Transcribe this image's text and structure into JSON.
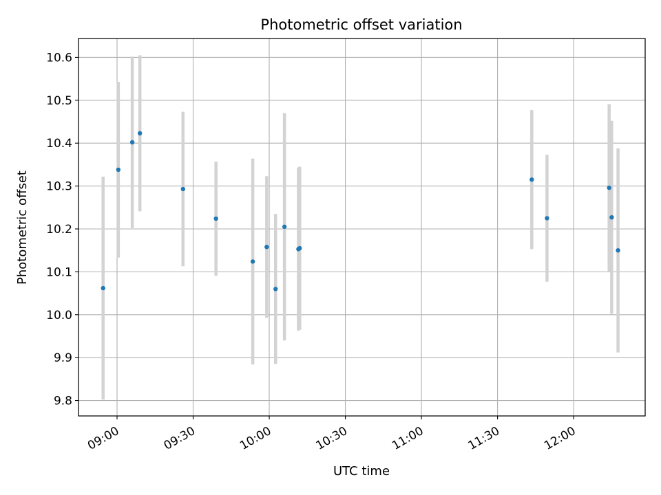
{
  "chart_data": {
    "type": "scatter",
    "title": "Photometric offset variation",
    "xlabel": "UTC time",
    "ylabel": "Photometric offset",
    "x_tick_labels": [
      "09:00",
      "09:30",
      "10:00",
      "10:30",
      "11:00",
      "11:30",
      "12:00"
    ],
    "y_tick_labels": [
      "9.8",
      "9.9",
      "10.0",
      "10.1",
      "10.2",
      "10.3",
      "10.4",
      "10.5",
      "10.6"
    ],
    "xlim": [
      "08:44:48",
      "12:28:12"
    ],
    "ylim": [
      9.764,
      10.644
    ],
    "grid": true,
    "point_color": "#1f77b4",
    "errorbar_color": "#d3d3d3",
    "points": [
      {
        "x": "08:54:30",
        "y": 10.062,
        "yerr": 0.26
      },
      {
        "x": "09:00:30",
        "y": 10.338,
        "yerr": 0.205
      },
      {
        "x": "09:06:00",
        "y": 10.402,
        "yerr": 0.2
      },
      {
        "x": "09:09:00",
        "y": 10.423,
        "yerr": 0.182
      },
      {
        "x": "09:26:00",
        "y": 10.293,
        "yerr": 0.18
      },
      {
        "x": "09:39:00",
        "y": 10.224,
        "yerr": 0.133
      },
      {
        "x": "09:53:30",
        "y": 10.124,
        "yerr": 0.24
      },
      {
        "x": "09:59:00",
        "y": 10.158,
        "yerr": 0.165
      },
      {
        "x": "10:02:30",
        "y": 10.06,
        "yerr": 0.175
      },
      {
        "x": "10:06:00",
        "y": 10.205,
        "yerr": 0.265
      },
      {
        "x": "10:11:30",
        "y": 10.153,
        "yerr": 0.19
      },
      {
        "x": "10:12:00",
        "y": 10.155,
        "yerr": 0.19
      },
      {
        "x": "11:43:30",
        "y": 10.315,
        "yerr": 0.162
      },
      {
        "x": "11:49:30",
        "y": 10.225,
        "yerr": 0.148
      },
      {
        "x": "12:14:00",
        "y": 10.296,
        "yerr": 0.195
      },
      {
        "x": "12:15:00",
        "y": 10.227,
        "yerr": 0.225
      },
      {
        "x": "12:17:30",
        "y": 10.15,
        "yerr": 0.238
      }
    ]
  }
}
